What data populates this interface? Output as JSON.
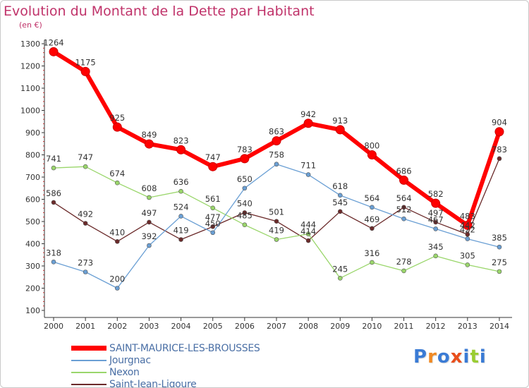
{
  "title": "Evolution du Montant de la Dette par Habitant",
  "unit_label": "(en €)",
  "logo": {
    "letters": [
      "P",
      "r",
      "o",
      "x",
      "i",
      "t",
      "i"
    ],
    "colors": [
      "#3a7bd5",
      "#f08a24",
      "#3a7bd5",
      "#e94e1b",
      "#3a7bd5",
      "#9acd32",
      "#3a7bd5"
    ]
  },
  "chart_data": {
    "type": "line",
    "title": "Evolution du Montant de la Dette par Habitant",
    "ylabel": "(en €)",
    "xlabel": "",
    "ylim": [
      100,
      1300
    ],
    "yticks": [
      100,
      200,
      300,
      400,
      500,
      600,
      700,
      800,
      900,
      1000,
      1100,
      1200,
      1300
    ],
    "categories": [
      "2000",
      "2001",
      "2002",
      "2003",
      "2004",
      "2005",
      "2006",
      "2007",
      "2008",
      "2009",
      "2010",
      "2011",
      "2012",
      "2013",
      "2014"
    ],
    "grid": false,
    "legend_position": "bottom-left",
    "series": [
      {
        "name": "SAINT-MAURICE-LES-BROUSSES",
        "color": "#ff0000",
        "values": [
          1264,
          1175,
          925,
          849,
          823,
          747,
          783,
          863,
          942,
          913,
          800,
          686,
          582,
          483,
          904
        ]
      },
      {
        "name": "Jourgnac",
        "color": "#6a9fd4",
        "values": [
          318,
          273,
          200,
          392,
          524,
          450,
          650,
          758,
          711,
          618,
          564,
          512,
          467,
          422,
          385
        ]
      },
      {
        "name": "Nexon",
        "color": "#9ad66b",
        "values": [
          741,
          747,
          674,
          608,
          636,
          561,
          485,
          419,
          444,
          245,
          316,
          278,
          345,
          305,
          275
        ]
      },
      {
        "name": "Saint-Jean-Ligoure",
        "color": "#6b2a2a",
        "values": [
          586,
          492,
          410,
          497,
          419,
          477,
          540,
          501,
          414,
          545,
          469,
          564,
          497,
          442,
          783
        ]
      }
    ]
  }
}
